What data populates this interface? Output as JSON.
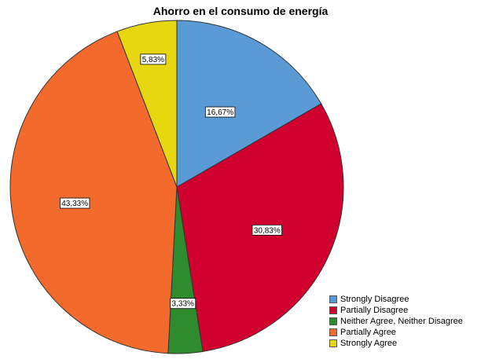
{
  "chart_data": {
    "type": "pie",
    "title": "Ahorro en el consumo de energía",
    "categories": [
      "Strongly Disagree",
      "Partially Disagree",
      "Neither Agree, Neither Disagree",
      "Partially Agree",
      "Strongly Agree"
    ],
    "values": [
      16.67,
      30.83,
      3.33,
      43.33,
      5.83
    ],
    "labels": [
      "16,67%",
      "30,83%",
      "3,33%",
      "43,33%",
      "5,83%"
    ],
    "colors": [
      "#5b9bd5",
      "#d0012f",
      "#2e8b2e",
      "#f26a2c",
      "#e6d711"
    ],
    "start_angle_deg": 0,
    "direction": "clockwise",
    "legend_position": "bottom-right"
  }
}
